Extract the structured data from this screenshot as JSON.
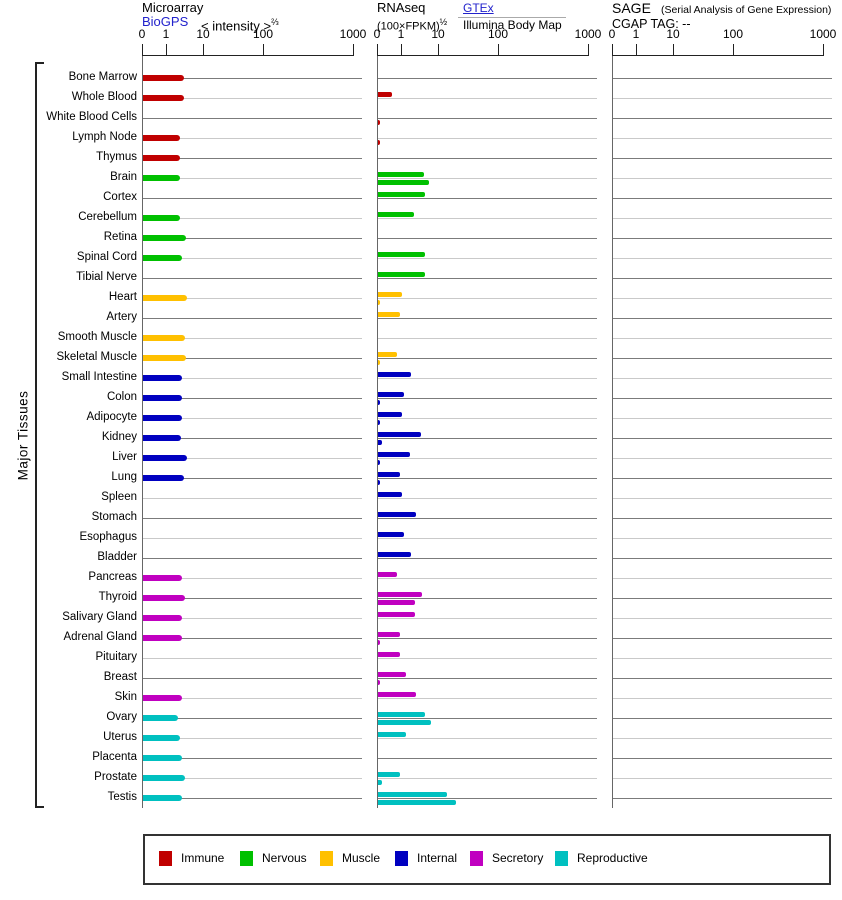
{
  "row_axis_label": "Major Tissues",
  "axis_ticks": [
    "0",
    "1",
    "10",
    "100",
    "1000"
  ],
  "headers": {
    "microarray": {
      "title": "Microarray",
      "link": "BioGPS",
      "transform": "< intensity >",
      "transform_sup": "⅔"
    },
    "rnaseq": {
      "title": "RNAseq",
      "unit": "(100×FPKM)",
      "unit_sup": "½",
      "link": "GTEx",
      "sublabel": "Illumina Body Map"
    },
    "sage": {
      "title": "SAGE",
      "subtitle": "(Serial Analysis of Gene Expression)",
      "line2": "CGAP TAG: --"
    }
  },
  "legend": {
    "items": [
      {
        "label": "Immune",
        "color": "#C00000"
      },
      {
        "label": "Nervous",
        "color": "#00C000"
      },
      {
        "label": "Muscle",
        "color": "#FFC000"
      },
      {
        "label": "Internal",
        "color": "#0000C0"
      },
      {
        "label": "Secretory",
        "color": "#C000C0"
      },
      {
        "label": "Reproductive",
        "color": "#00C0C0"
      }
    ]
  },
  "chart_data": {
    "type": "bar",
    "orientation": "horizontal",
    "row_axis_label": "Major Tissues",
    "x_scale": "nonlinear, ticks at 0 / 1 / 10 / 100 / 1000",
    "panels": [
      "Microarray (BioGPS)",
      "RNAseq (GTEx + Illumina Body Map)",
      "SAGE (CGAP, no data)"
    ],
    "categories": [
      "Bone Marrow",
      "Whole Blood",
      "White Blood Cells",
      "Lymph Node",
      "Thymus",
      "Brain",
      "Cortex",
      "Cerebellum",
      "Retina",
      "Spinal Cord",
      "Tibial Nerve",
      "Heart",
      "Artery",
      "Smooth Muscle",
      "Skeletal Muscle",
      "Small Intestine",
      "Colon",
      "Adipocyte",
      "Kidney",
      "Liver",
      "Lung",
      "Spleen",
      "Stomach",
      "Esophagus",
      "Bladder",
      "Pancreas",
      "Thyroid",
      "Salivary Gland",
      "Adrenal Gland",
      "Pituitary",
      "Breast",
      "Skin",
      "Ovary",
      "Uterus",
      "Placenta",
      "Prostate",
      "Testis"
    ],
    "groups": [
      "Immune",
      "Immune",
      "Immune",
      "Immune",
      "Immune",
      "Nervous",
      "Nervous",
      "Nervous",
      "Nervous",
      "Nervous",
      "Nervous",
      "Muscle",
      "Muscle",
      "Muscle",
      "Muscle",
      "Internal",
      "Internal",
      "Internal",
      "Internal",
      "Internal",
      "Internal",
      "Internal",
      "Internal",
      "Internal",
      "Internal",
      "Secretory",
      "Secretory",
      "Secretory",
      "Secretory",
      "Secretory",
      "Secretory",
      "Secretory",
      "Reproductive",
      "Reproductive",
      "Reproductive",
      "Reproductive",
      "Reproductive"
    ],
    "series": [
      {
        "name": "Microarray BioGPS, < intensity >^(2/3)",
        "values": [
          2.9,
          2.8,
          null,
          2.3,
          2.2,
          2.3,
          null,
          2.3,
          3.2,
          2.5,
          null,
          3.4,
          null,
          3.0,
          3.3,
          2.6,
          2.6,
          2.6,
          2.4,
          3.4,
          2.8,
          null,
          null,
          null,
          null,
          2.5,
          3.1,
          2.6,
          2.5,
          null,
          null,
          2.5,
          2.0,
          2.2,
          2.5,
          3.0,
          2.5
        ]
      },
      {
        "name": "RNAseq GTEx, (100×FPKM)^(1/2)",
        "values": [
          null,
          0.6,
          null,
          null,
          null,
          4.0,
          4.3,
          2.1,
          null,
          4.1,
          4.2,
          1.0,
          0.9,
          null,
          0.8,
          1.7,
          1.1,
          1.0,
          3.2,
          1.6,
          0.9,
          1.0,
          2.4,
          1.1,
          1.8,
          0.8,
          3.5,
          2.2,
          0.9,
          0.9,
          1.3,
          2.4,
          4.1,
          1.3,
          null,
          0.9,
          13.6
        ]
      },
      {
        "name": "RNAseq Illumina Body Map, (100×FPKM)^(1/2)",
        "values": [
          null,
          null,
          0.1,
          0.1,
          null,
          5.4,
          null,
          null,
          null,
          null,
          null,
          0.1,
          null,
          null,
          0.1,
          null,
          0.1,
          0.1,
          0.15,
          0.1,
          0.1,
          null,
          null,
          null,
          null,
          null,
          2.2,
          null,
          0.1,
          null,
          0.1,
          null,
          6.2,
          null,
          null,
          0.15,
          19.2
        ]
      },
      {
        "name": "SAGE CGAP TAG",
        "values": [
          null,
          null,
          null,
          null,
          null,
          null,
          null,
          null,
          null,
          null,
          null,
          null,
          null,
          null,
          null,
          null,
          null,
          null,
          null,
          null,
          null,
          null,
          null,
          null,
          null,
          null,
          null,
          null,
          null,
          null,
          null,
          null,
          null,
          null,
          null,
          null,
          null
        ]
      }
    ]
  }
}
